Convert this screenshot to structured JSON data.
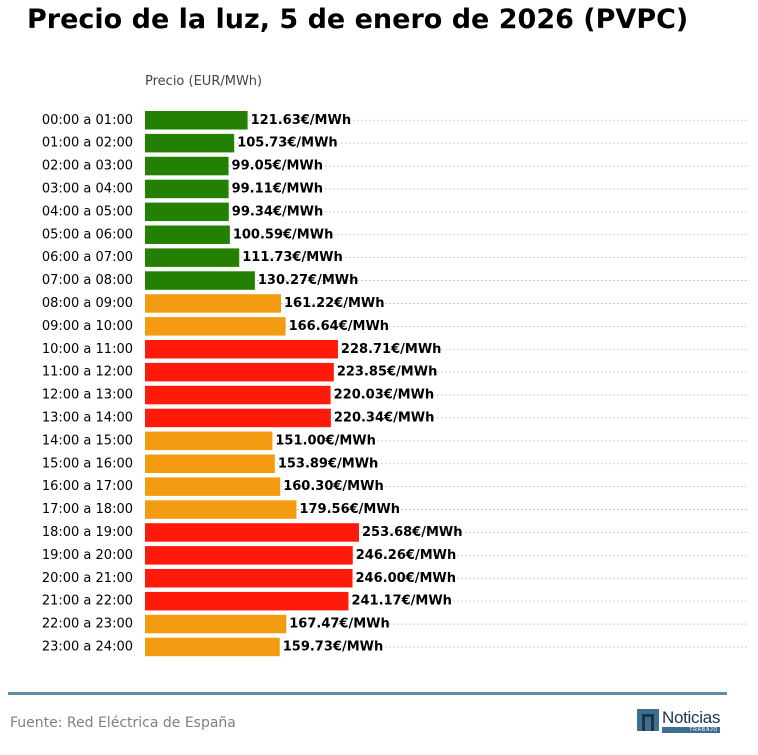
{
  "chart_data": {
    "type": "bar",
    "orientation": "horizontal",
    "title": "Precio de la luz, 5 de enero de 2026 (PVPC)",
    "ylabel": "Precio (EUR/MWh)",
    "categories": [
      "00:00 a 01:00",
      "01:00 a 02:00",
      "02:00 a 03:00",
      "03:00 a 04:00",
      "04:00 a 05:00",
      "05:00 a 06:00",
      "06:00 a 07:00",
      "07:00 a 08:00",
      "08:00 a 09:00",
      "09:00 a 10:00",
      "10:00 a 11:00",
      "11:00 a 12:00",
      "12:00 a 13:00",
      "13:00 a 14:00",
      "14:00 a 15:00",
      "15:00 a 16:00",
      "16:00 a 17:00",
      "17:00 a 18:00",
      "18:00 a 19:00",
      "19:00 a 20:00",
      "20:00 a 21:00",
      "21:00 a 22:00",
      "22:00 a 23:00",
      "23:00 a 24:00"
    ],
    "values": [
      121.63,
      105.73,
      99.05,
      99.11,
      99.34,
      100.59,
      111.73,
      130.27,
      161.22,
      166.64,
      228.71,
      223.85,
      220.03,
      220.34,
      151.0,
      153.89,
      160.3,
      179.56,
      253.68,
      246.26,
      246.0,
      241.17,
      167.47,
      159.73
    ],
    "value_labels": [
      "121.63€/MWh",
      "105.73€/MWh",
      "99.05€/MWh",
      "99.11€/MWh",
      "99.34€/MWh",
      "100.59€/MWh",
      "111.73€/MWh",
      "130.27€/MWh",
      "161.22€/MWh",
      "166.64€/MWh",
      "228.71€/MWh",
      "223.85€/MWh",
      "220.03€/MWh",
      "220.34€/MWh",
      "151.00€/MWh",
      "153.89€/MWh",
      "160.30€/MWh",
      "179.56€/MWh",
      "253.68€/MWh",
      "246.26€/MWh",
      "246.00€/MWh",
      "241.17€/MWh",
      "167.47€/MWh",
      "159.73€/MWh"
    ],
    "levels": [
      "low",
      "low",
      "low",
      "low",
      "low",
      "low",
      "low",
      "low",
      "mid",
      "mid",
      "high",
      "high",
      "high",
      "high",
      "mid",
      "mid",
      "mid",
      "mid",
      "high",
      "high",
      "high",
      "high",
      "mid",
      "mid"
    ],
    "colors": {
      "low": "#238000",
      "mid": "#f39c12",
      "high": "#ff1a0a"
    },
    "xlim": [
      0,
      350
    ],
    "grid": "horizontal-dotted"
  },
  "footer": {
    "source": "Fuente: Red Eléctrica de España",
    "logo_word": "Noticias",
    "logo_sub": "TRABAJO",
    "accent_color": "#5b8fa8"
  }
}
